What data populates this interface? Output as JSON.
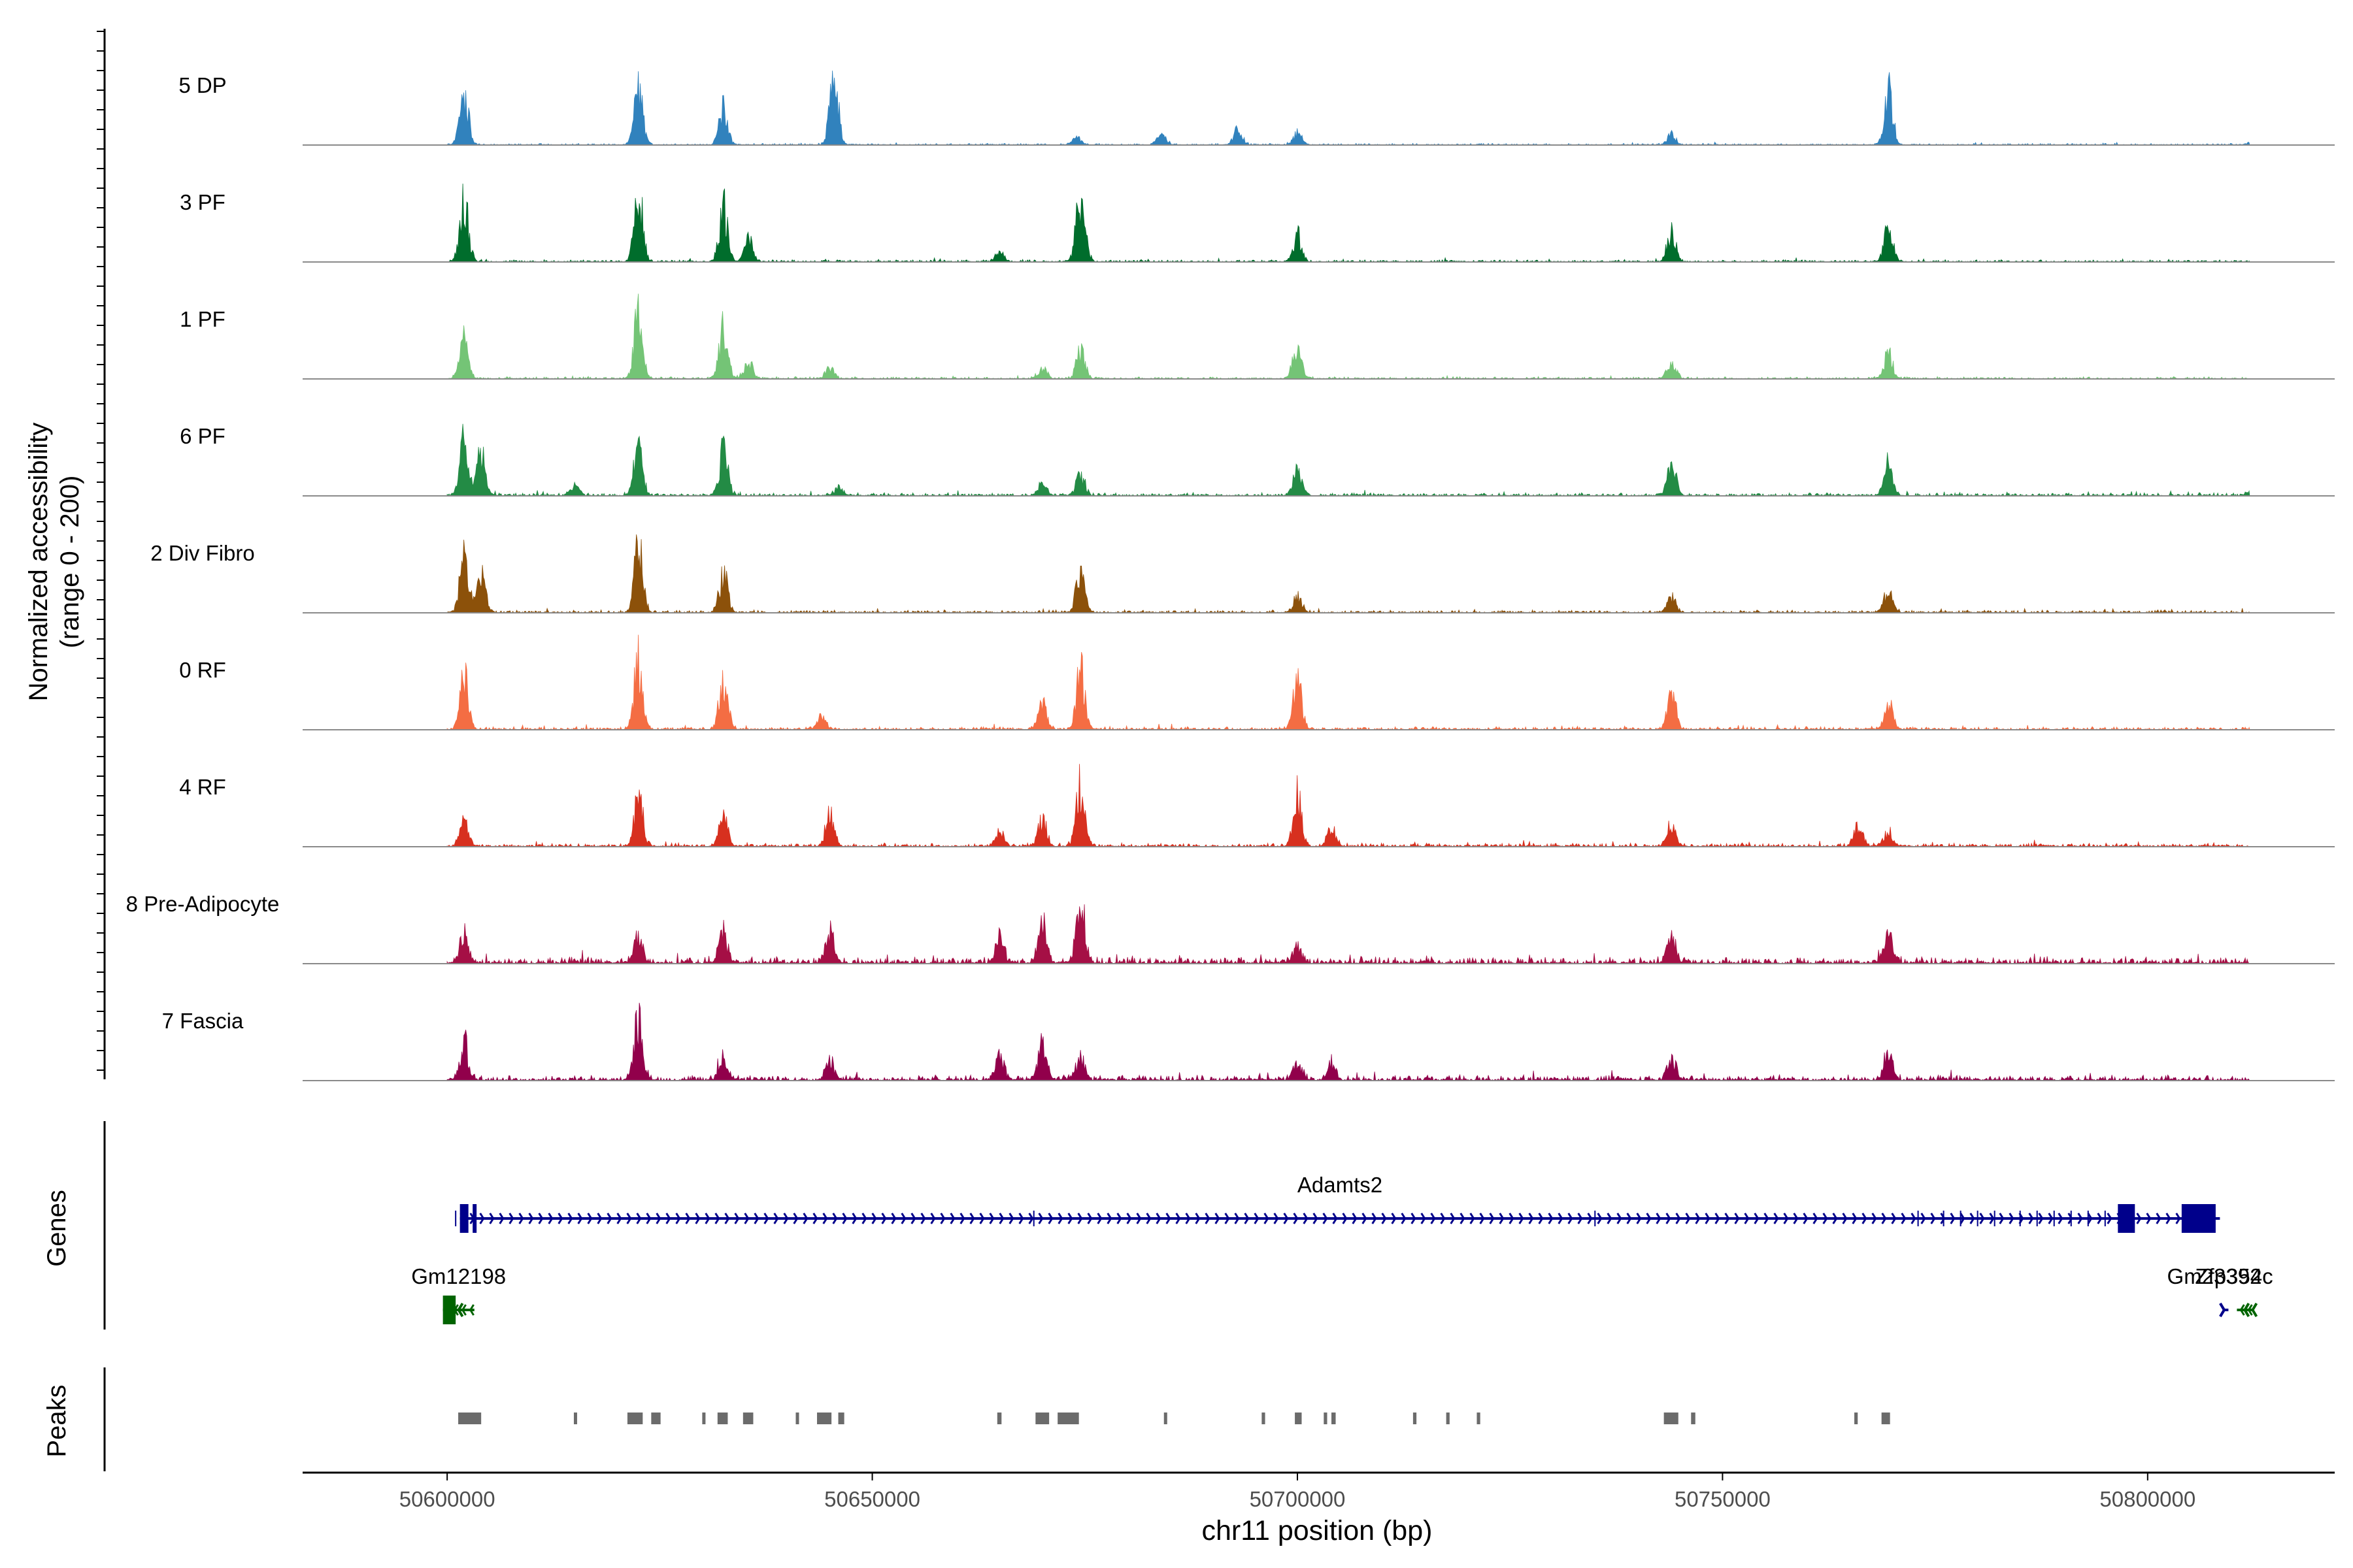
{
  "chart_data": {
    "type": "area",
    "title": "",
    "ylabel": "Normalized accessibility",
    "ylabel2": "(range 0 - 200)",
    "xlabel": "chr11 position (bp)",
    "xlim": [
      50583000,
      50822000
    ],
    "ylim": [
      0,
      200
    ],
    "x_ticks": [
      50600000,
      50650000,
      50700000,
      50750000,
      50800000
    ],
    "x_tick_labels": [
      "50600000",
      "50650000",
      "50700000",
      "50750000",
      "50800000"
    ],
    "tracks": [
      {
        "name": "5 DP",
        "color": "#3182bd",
        "noise": 1.2,
        "end": 50812000,
        "peaks": [
          [
            50602000,
            145
          ],
          [
            50622500,
            150
          ],
          [
            50632500,
            100
          ],
          [
            50645500,
            185
          ],
          [
            50674000,
            22
          ],
          [
            50684000,
            30
          ],
          [
            50693000,
            40
          ],
          [
            50700000,
            32
          ],
          [
            50744000,
            28
          ],
          [
            50769500,
            145
          ],
          [
            50812000,
            5
          ]
        ]
      },
      {
        "name": "3 PF",
        "color": "#006d2c",
        "noise": 1.6,
        "end": 50812000,
        "peaks": [
          [
            50602000,
            175
          ],
          [
            50622500,
            200
          ],
          [
            50632500,
            150
          ],
          [
            50635500,
            60
          ],
          [
            50665000,
            25
          ],
          [
            50674500,
            190
          ],
          [
            50700000,
            75
          ],
          [
            50744000,
            80
          ],
          [
            50769500,
            100
          ]
        ]
      },
      {
        "name": "1 PF",
        "color": "#74c476",
        "noise": 1.6,
        "end": 50812000,
        "peaks": [
          [
            50602000,
            110
          ],
          [
            50622500,
            185
          ],
          [
            50632500,
            140
          ],
          [
            50635500,
            45
          ],
          [
            50645000,
            30
          ],
          [
            50670000,
            30
          ],
          [
            50674500,
            75
          ],
          [
            50700000,
            90
          ],
          [
            50744000,
            50
          ],
          [
            50769500,
            70
          ]
        ]
      },
      {
        "name": "6 PF",
        "color": "#238b45",
        "noise": 2.2,
        "end": 50812000,
        "peaks": [
          [
            50602000,
            145
          ],
          [
            50604000,
            115
          ],
          [
            50622500,
            140
          ],
          [
            50632500,
            125
          ],
          [
            50615000,
            25
          ],
          [
            50646000,
            20
          ],
          [
            50670000,
            30
          ],
          [
            50674500,
            55
          ],
          [
            50700000,
            80
          ],
          [
            50744000,
            110
          ],
          [
            50769500,
            90
          ],
          [
            50812000,
            8
          ]
        ]
      },
      {
        "name": "2 Div Fibro",
        "color": "#8c510a",
        "noise": 2.0,
        "end": 50812000,
        "peaks": [
          [
            50602000,
            165
          ],
          [
            50604000,
            100
          ],
          [
            50622500,
            190
          ],
          [
            50632500,
            110
          ],
          [
            50674500,
            120
          ],
          [
            50700000,
            45
          ],
          [
            50744000,
            40
          ],
          [
            50769500,
            60
          ]
        ]
      },
      {
        "name": "0 RF",
        "color": "#f46d43",
        "noise": 2.2,
        "end": 50812000,
        "peaks": [
          [
            50602000,
            140
          ],
          [
            50622500,
            190
          ],
          [
            50632500,
            150
          ],
          [
            50644000,
            35
          ],
          [
            50670000,
            70
          ],
          [
            50674500,
            160
          ],
          [
            50700000,
            140
          ],
          [
            50744000,
            100
          ],
          [
            50769500,
            70
          ]
        ]
      },
      {
        "name": "4 RF",
        "color": "#d7301f",
        "noise": 2.6,
        "end": 50812000,
        "peaks": [
          [
            50602000,
            75
          ],
          [
            50622500,
            130
          ],
          [
            50632500,
            80
          ],
          [
            50645000,
            90
          ],
          [
            50665000,
            45
          ],
          [
            50670000,
            70
          ],
          [
            50674500,
            170
          ],
          [
            50700000,
            140
          ],
          [
            50704000,
            50
          ],
          [
            50744000,
            60
          ],
          [
            50766000,
            55
          ],
          [
            50769500,
            40
          ]
        ]
      },
      {
        "name": "8 Pre-Adipocyte",
        "color": "#a50f45",
        "noise": 5.0,
        "end": 50812000,
        "peaks": [
          [
            50602000,
            80
          ],
          [
            50622500,
            70
          ],
          [
            50632500,
            80
          ],
          [
            50645000,
            90
          ],
          [
            50665000,
            60
          ],
          [
            50670000,
            115
          ],
          [
            50674500,
            160
          ],
          [
            50700000,
            40
          ],
          [
            50744000,
            60
          ],
          [
            50769500,
            90
          ]
        ]
      },
      {
        "name": "7 Fascia",
        "color": "#91004b",
        "noise": 4.0,
        "end": 50812000,
        "peaks": [
          [
            50602000,
            100
          ],
          [
            50622500,
            160
          ],
          [
            50632500,
            70
          ],
          [
            50645000,
            55
          ],
          [
            50665000,
            70
          ],
          [
            50670000,
            95
          ],
          [
            50674500,
            60
          ],
          [
            50700000,
            50
          ],
          [
            50704000,
            45
          ],
          [
            50744000,
            60
          ],
          [
            50769500,
            75
          ]
        ]
      }
    ],
    "genes": [
      {
        "name": "Adamts2",
        "start": 50601500,
        "end": 50808500,
        "strand": "+",
        "color": "#00008b",
        "exons": [
          [
            50601500,
            50602500
          ],
          [
            50603000,
            50603300
          ],
          [
            50796500,
            50798500
          ],
          [
            50804000,
            50808000
          ]
        ]
      },
      {
        "name": "Gm12198",
        "start": 50599500,
        "end": 50603200,
        "strand": "-",
        "color": "#006400",
        "exons": [
          [
            50599500,
            50601000
          ]
        ]
      },
      {
        "name": "Gm23392",
        "start": 50809000,
        "end": 50809500,
        "strand": "+",
        "color": "#00008b",
        "exons": []
      },
      {
        "name": "Zfp354c",
        "start": 50810500,
        "end": 50812500,
        "strand": "-",
        "color": "#006400",
        "exons": []
      }
    ],
    "peaks_track": [
      [
        50601300,
        50604000
      ],
      [
        50614900,
        50615200
      ],
      [
        50621200,
        50623000
      ],
      [
        50624000,
        50625100
      ],
      [
        50630000,
        50630300
      ],
      [
        50631800,
        50633000
      ],
      [
        50634800,
        50636000
      ],
      [
        50641000,
        50641300
      ],
      [
        50643500,
        50645200
      ],
      [
        50646000,
        50646700
      ],
      [
        50664700,
        50665200
      ],
      [
        50669200,
        50670800
      ],
      [
        50671800,
        50674300
      ],
      [
        50684300,
        50684600
      ],
      [
        50695800,
        50696200
      ],
      [
        50699700,
        50700500
      ],
      [
        50703100,
        50703500
      ],
      [
        50704000,
        50704500
      ],
      [
        50713600,
        50714000
      ],
      [
        50717500,
        50717900
      ],
      [
        50721100,
        50721500
      ],
      [
        50743100,
        50744800
      ],
      [
        50746300,
        50746800
      ],
      [
        50765500,
        50765900
      ],
      [
        50768700,
        50769700
      ]
    ]
  },
  "panels": {
    "genes_label": "Genes",
    "peaks_label": "Peaks"
  }
}
